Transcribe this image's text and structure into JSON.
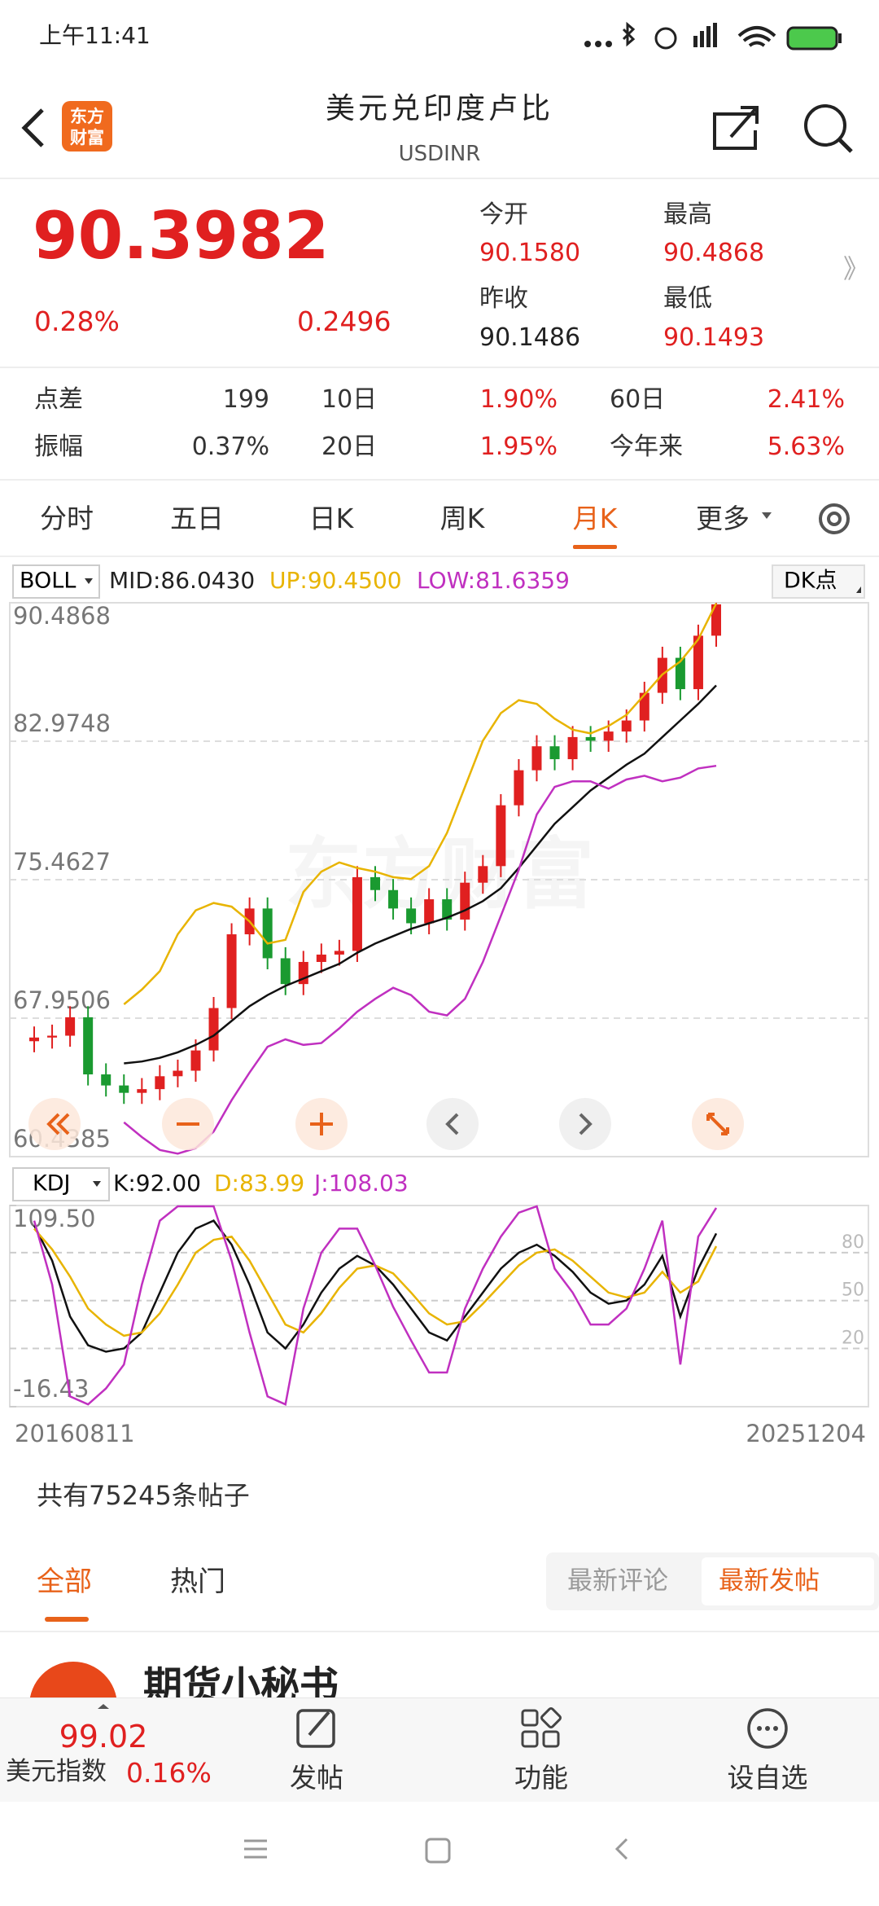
{
  "status_bar": {
    "time": "上午11:41"
  },
  "header": {
    "title": "美元兑印度卢比",
    "subtitle": "USDINR",
    "logo_lines": [
      "东方",
      "财富"
    ]
  },
  "quote": {
    "price": "90.3982",
    "change_pct": "0.28%",
    "change": "0.2496",
    "open_label": "今开",
    "open": "90.1580",
    "high_label": "最高",
    "high": "90.4868",
    "prev_close_label": "昨收",
    "prev_close": "90.1486",
    "low_label": "最低",
    "low": "90.1493",
    "more": "》"
  },
  "stats": [
    [
      "点差",
      "199",
      "10日",
      "1.90%",
      "60日",
      "2.41%"
    ],
    [
      "振幅",
      "0.37%",
      "20日",
      "1.95%",
      "今年来",
      "5.63%"
    ]
  ],
  "tabs": [
    "分时",
    "五日",
    "日K",
    "周K",
    "月K",
    "更多"
  ],
  "active_tab": 4,
  "chart_controls": {
    "indicator_menu": "BOLL",
    "dk_button": "DK点",
    "sub_indicator_menu": "KDJ"
  },
  "chart_data": [
    {
      "type": "candlestick",
      "watermark": "东方财富",
      "readouts": [
        "MID:86.0430",
        "UP:90.4500",
        "LOW:81.6359"
      ],
      "up_color": "#e02020",
      "down_color": "#1a9a30",
      "open": [
        66.7,
        66.9,
        67.0,
        68.0,
        64.9,
        64.3,
        63.9,
        64.1,
        64.8,
        65.1,
        66.2,
        68.5,
        72.5,
        73.9,
        71.2,
        69.8,
        71.0,
        71.4,
        71.6,
        75.6,
        74.9,
        73.9,
        73.1,
        74.4,
        73.3,
        75.3,
        76.2,
        79.5,
        81.4,
        82.7,
        82.0,
        83.2,
        83.0,
        83.5,
        84.1,
        85.6,
        87.5,
        85.8,
        88.7
      ],
      "high": [
        67.5,
        67.6,
        68.6,
        68.6,
        65.5,
        64.9,
        64.7,
        65.4,
        65.7,
        66.8,
        69.1,
        73.1,
        74.5,
        74.5,
        71.8,
        71.6,
        72.0,
        72.2,
        76.2,
        76.2,
        75.5,
        74.5,
        75.0,
        75.0,
        75.9,
        76.8,
        80.1,
        82.0,
        83.3,
        83.3,
        83.8,
        83.8,
        84.1,
        84.7,
        86.2,
        88.1,
        88.1,
        89.3,
        90.48
      ],
      "low": [
        66.1,
        66.3,
        66.4,
        64.3,
        63.7,
        63.3,
        63.3,
        63.5,
        64.2,
        64.5,
        65.6,
        67.9,
        71.9,
        70.6,
        69.2,
        69.2,
        70.4,
        70.8,
        71.0,
        74.3,
        73.3,
        72.5,
        72.5,
        72.7,
        72.7,
        74.7,
        75.6,
        78.9,
        80.8,
        81.4,
        81.4,
        82.4,
        82.4,
        82.9,
        83.5,
        85.0,
        85.2,
        85.2,
        88.1
      ],
      "close": [
        66.9,
        67.0,
        68.0,
        64.9,
        64.3,
        63.9,
        64.1,
        64.8,
        65.1,
        66.2,
        68.5,
        72.5,
        73.9,
        71.2,
        69.8,
        71.0,
        71.4,
        71.6,
        75.6,
        74.9,
        73.9,
        73.1,
        74.4,
        73.3,
        75.3,
        76.2,
        79.5,
        81.4,
        82.7,
        82.0,
        83.2,
        83.0,
        83.5,
        84.1,
        85.6,
        87.5,
        85.8,
        88.7,
        90.4
      ],
      "overlays": [
        {
          "name": "MID",
          "color": "#111111",
          "values": [
            null,
            null,
            null,
            null,
            null,
            65.5,
            65.6,
            65.8,
            66.1,
            66.5,
            67.0,
            67.8,
            68.6,
            69.2,
            69.7,
            70.1,
            70.5,
            70.9,
            71.5,
            72.0,
            72.4,
            72.8,
            73.1,
            73.4,
            73.8,
            74.3,
            75.0,
            76.1,
            77.3,
            78.5,
            79.4,
            80.3,
            81.0,
            81.7,
            82.3,
            83.2,
            84.1,
            85.0,
            86.0
          ]
        },
        {
          "name": "UP",
          "color": "#e8b400",
          "values": [
            null,
            null,
            null,
            null,
            null,
            68.7,
            69.5,
            70.5,
            72.5,
            73.8,
            74.2,
            74.0,
            73.2,
            72.0,
            72.2,
            74.8,
            75.9,
            76.4,
            76.1,
            75.9,
            75.6,
            75.5,
            76.2,
            78.0,
            80.5,
            83.0,
            84.5,
            85.2,
            85.0,
            84.2,
            83.6,
            83.4,
            83.8,
            84.4,
            85.5,
            86.6,
            87.3,
            88.5,
            90.45
          ]
        },
        {
          "name": "LOW",
          "color": "#c030c0",
          "values": [
            null,
            null,
            null,
            null,
            null,
            62.3,
            61.5,
            60.8,
            60.6,
            60.9,
            61.8,
            63.5,
            65.0,
            66.4,
            66.8,
            66.5,
            66.6,
            67.4,
            68.3,
            69.0,
            69.6,
            69.2,
            68.3,
            68.1,
            69.0,
            71.0,
            73.5,
            76.0,
            79.0,
            80.5,
            80.8,
            80.8,
            80.4,
            80.9,
            81.1,
            80.8,
            81.0,
            81.5,
            81.64
          ]
        }
      ],
      "ylim": [
        60.4385,
        90.4868
      ],
      "yticks": [
        90.4868,
        82.9748,
        75.4627,
        67.9506,
        60.4385
      ],
      "grid": true
    },
    {
      "type": "line",
      "readouts": [
        "K:92.00",
        "D:83.99",
        "J:108.03"
      ],
      "series": [
        {
          "name": "K",
          "color": "#111111",
          "values": [
            97,
            75,
            40,
            22,
            18,
            20,
            30,
            55,
            80,
            95,
            100,
            85,
            60,
            30,
            20,
            35,
            55,
            70,
            78,
            72,
            60,
            45,
            30,
            25,
            40,
            55,
            70,
            80,
            85,
            78,
            68,
            55,
            48,
            50,
            60,
            78,
            40,
            70,
            92
          ]
        },
        {
          "name": "D",
          "color": "#e8b400",
          "values": [
            95,
            82,
            65,
            45,
            35,
            28,
            30,
            42,
            60,
            80,
            88,
            90,
            75,
            55,
            35,
            30,
            42,
            58,
            70,
            72,
            67,
            55,
            42,
            35,
            37,
            48,
            60,
            72,
            80,
            82,
            75,
            65,
            55,
            52,
            55,
            68,
            55,
            62,
            83.99
          ]
        },
        {
          "name": "J",
          "color": "#c030c0",
          "values": [
            100,
            60,
            -10,
            -15,
            -5,
            10,
            60,
            100,
            109,
            109,
            109,
            75,
            30,
            -10,
            -15,
            45,
            80,
            95,
            95,
            72,
            46,
            25,
            5,
            5,
            45,
            70,
            90,
            105,
            109,
            70,
            55,
            35,
            35,
            45,
            70,
            100,
            10,
            90,
            108.03
          ]
        }
      ],
      "ylim": [
        -16.43,
        109.5
      ],
      "yticks": [
        {
          "value": 109.5,
          "label": "109.50"
        },
        -16.43
      ],
      "reference_lines": [
        80,
        50,
        20
      ],
      "start_label": "20160811",
      "end_label": "20251204"
    }
  ],
  "posts": {
    "count_text": "共有75245条帖子",
    "tabs": [
      "全部",
      "热门"
    ],
    "sort": [
      "最新评论",
      "最新发帖"
    ],
    "first_author": "期货小秘书"
  },
  "bottom_bar": {
    "index_value": "99.02",
    "index_name": "美元指数",
    "index_change": "0.16%",
    "actions": [
      "发帖",
      "功能",
      "设自选"
    ]
  }
}
